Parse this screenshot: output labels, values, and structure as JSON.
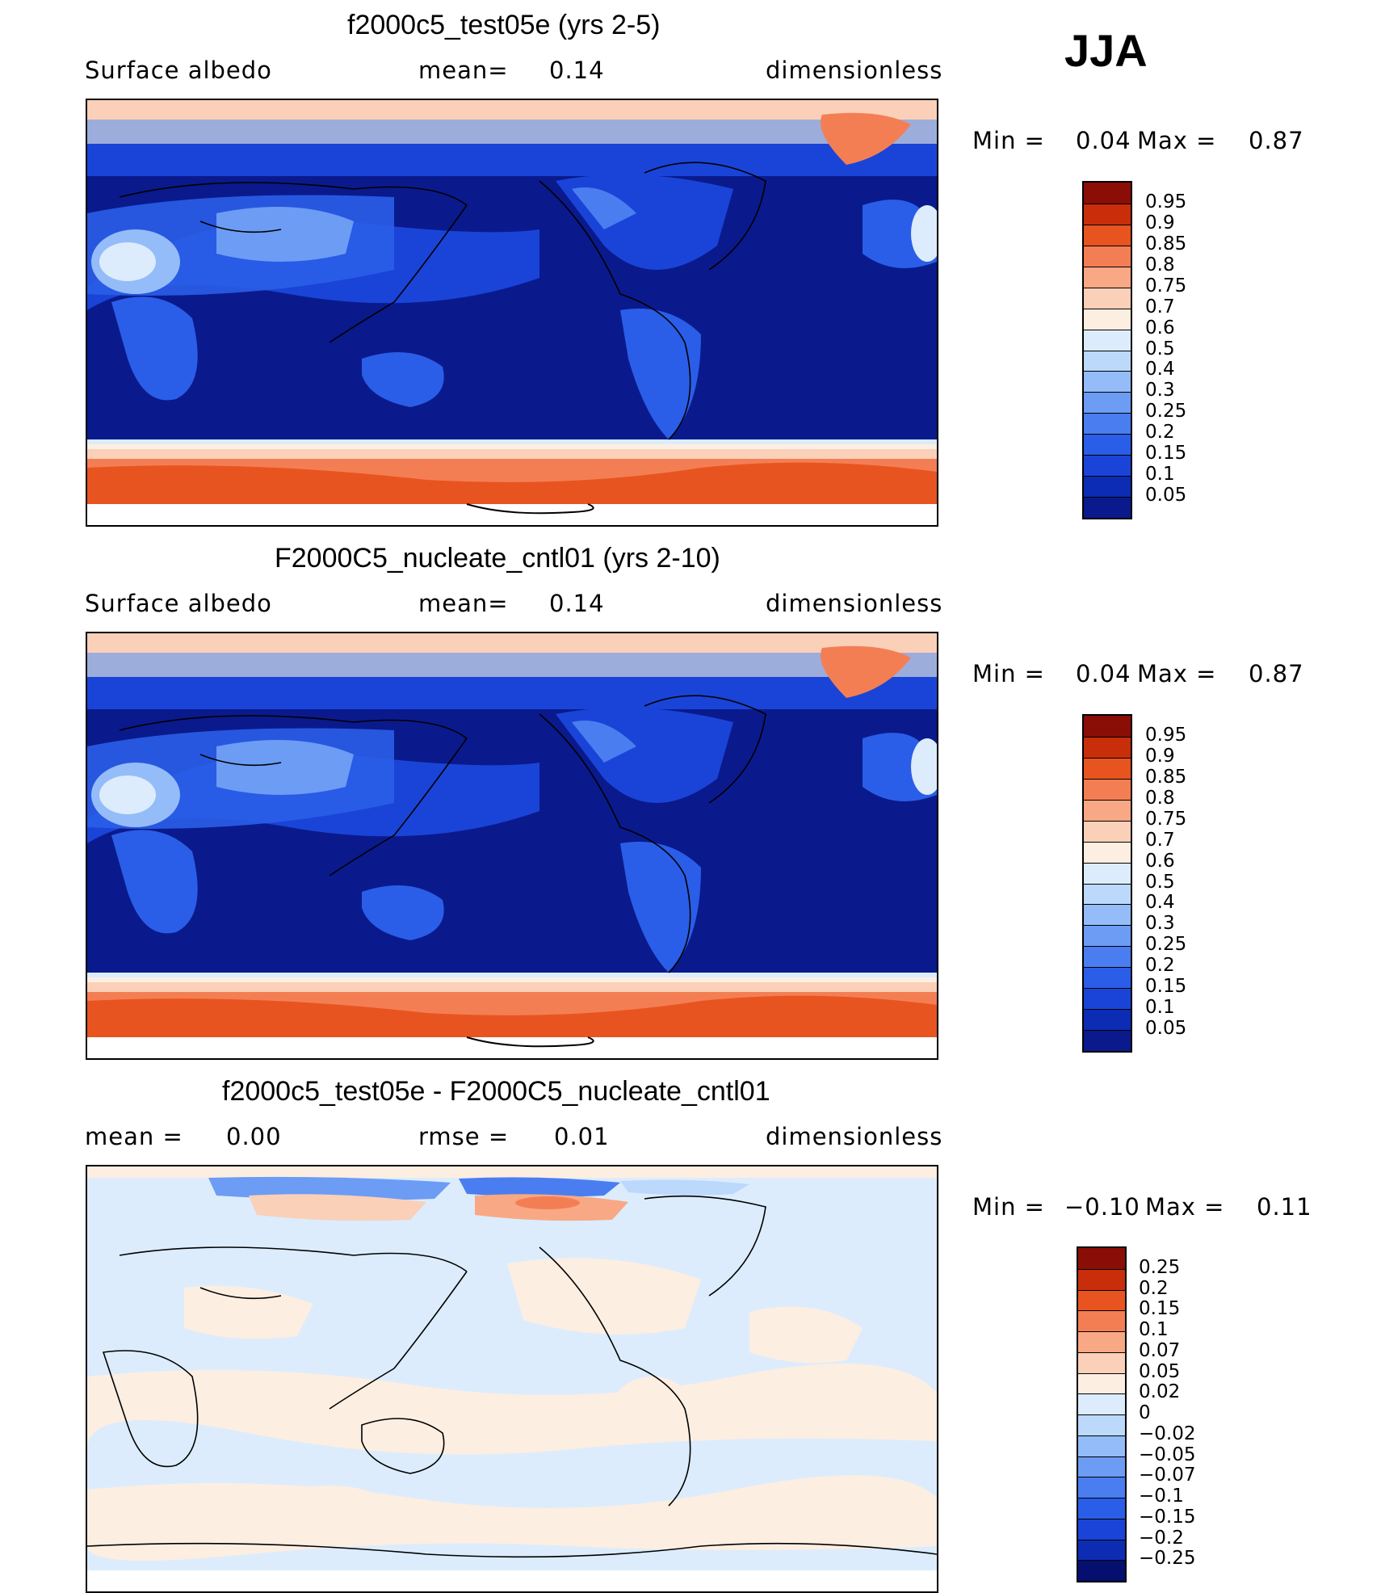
{
  "season": "JJA",
  "panels": [
    {
      "title": "f2000c5_test05e (yrs 2-5)",
      "left_label": "Surface albedo",
      "mid_label": "mean=",
      "mid_value": "0.14",
      "right_label": "dimensionless",
      "minmax_min_label": "Min =",
      "minmax_min": "0.04",
      "minmax_max_label": "Max =",
      "minmax_max": "0.87",
      "colorbar_labels": [
        "0.95",
        "0.9",
        "0.85",
        "0.8",
        "0.75",
        "0.7",
        "0.6",
        "0.5",
        "0.4",
        "0.3",
        "0.25",
        "0.2",
        "0.15",
        "0.1",
        "0.05"
      ]
    },
    {
      "title": "F2000C5_nucleate_cntl01 (yrs 2-10)",
      "left_label": "Surface albedo",
      "mid_label": "mean=",
      "mid_value": "0.14",
      "right_label": "dimensionless",
      "minmax_min_label": "Min =",
      "minmax_min": "0.04",
      "minmax_max_label": "Max =",
      "minmax_max": "0.87",
      "colorbar_labels": [
        "0.95",
        "0.9",
        "0.85",
        "0.8",
        "0.75",
        "0.7",
        "0.6",
        "0.5",
        "0.4",
        "0.3",
        "0.25",
        "0.2",
        "0.15",
        "0.1",
        "0.05"
      ]
    },
    {
      "title": "f2000c5_test05e - F2000C5_nucleate_cntl01",
      "left_label": "mean =",
      "left_value": "0.00",
      "mid_label": "rmse =",
      "mid_value": "0.01",
      "right_label": "dimensionless",
      "minmax_min_label": "Min =",
      "minmax_min": "−0.10",
      "minmax_max_label": "Max =",
      "minmax_max": "0.11",
      "colorbar_labels": [
        "0.25",
        "0.2",
        "0.15",
        "0.1",
        "0.07",
        "0.05",
        "0.02",
        "0",
        "−0.02",
        "−0.05",
        "−0.07",
        "−0.1",
        "−0.15",
        "−0.2",
        "−0.25"
      ]
    }
  ],
  "colors": {
    "abs_scale": [
      "#0a1a8c",
      "#0c2cb4",
      "#1a44d8",
      "#2a5ee8",
      "#4a7ef0",
      "#6c9cf4",
      "#94bcf8",
      "#bcd8fb",
      "#dcecfc",
      "#fdeee2",
      "#fbd0b8",
      "#f8a884",
      "#f47e54",
      "#e85420",
      "#c82e0a",
      "#8a0e06"
    ],
    "diff_scale": [
      "#050f70",
      "#0c2cb4",
      "#1a44d8",
      "#2a5ee8",
      "#4a7ef0",
      "#6c9cf4",
      "#94bcf8",
      "#bcd8fb",
      "#dcecfc",
      "#fdeee2",
      "#fbd0b8",
      "#f8a884",
      "#f47e54",
      "#e85420",
      "#c82e0a",
      "#8a0e06"
    ]
  },
  "chart_data": [
    {
      "type": "heatmap",
      "title": "f2000c5_test05e (yrs 2-5)",
      "variable": "Surface albedo",
      "units": "dimensionless",
      "mean": 0.14,
      "min": 0.04,
      "max": 0.87,
      "levels": [
        0.05,
        0.1,
        0.15,
        0.2,
        0.25,
        0.3,
        0.4,
        0.5,
        0.6,
        0.7,
        0.75,
        0.8,
        0.85,
        0.9,
        0.95
      ]
    },
    {
      "type": "heatmap",
      "title": "F2000C5_nucleate_cntl01 (yrs 2-10)",
      "variable": "Surface albedo",
      "units": "dimensionless",
      "mean": 0.14,
      "min": 0.04,
      "max": 0.87,
      "levels": [
        0.05,
        0.1,
        0.15,
        0.2,
        0.25,
        0.3,
        0.4,
        0.5,
        0.6,
        0.7,
        0.75,
        0.8,
        0.85,
        0.9,
        0.95
      ]
    },
    {
      "type": "heatmap",
      "title": "f2000c5_test05e - F2000C5_nucleate_cntl01",
      "units": "dimensionless",
      "mean": 0.0,
      "rmse": 0.01,
      "min": -0.1,
      "max": 0.11,
      "levels": [
        -0.25,
        -0.2,
        -0.15,
        -0.1,
        -0.07,
        -0.05,
        -0.02,
        0,
        0.02,
        0.05,
        0.07,
        0.1,
        0.15,
        0.2,
        0.25
      ]
    }
  ]
}
